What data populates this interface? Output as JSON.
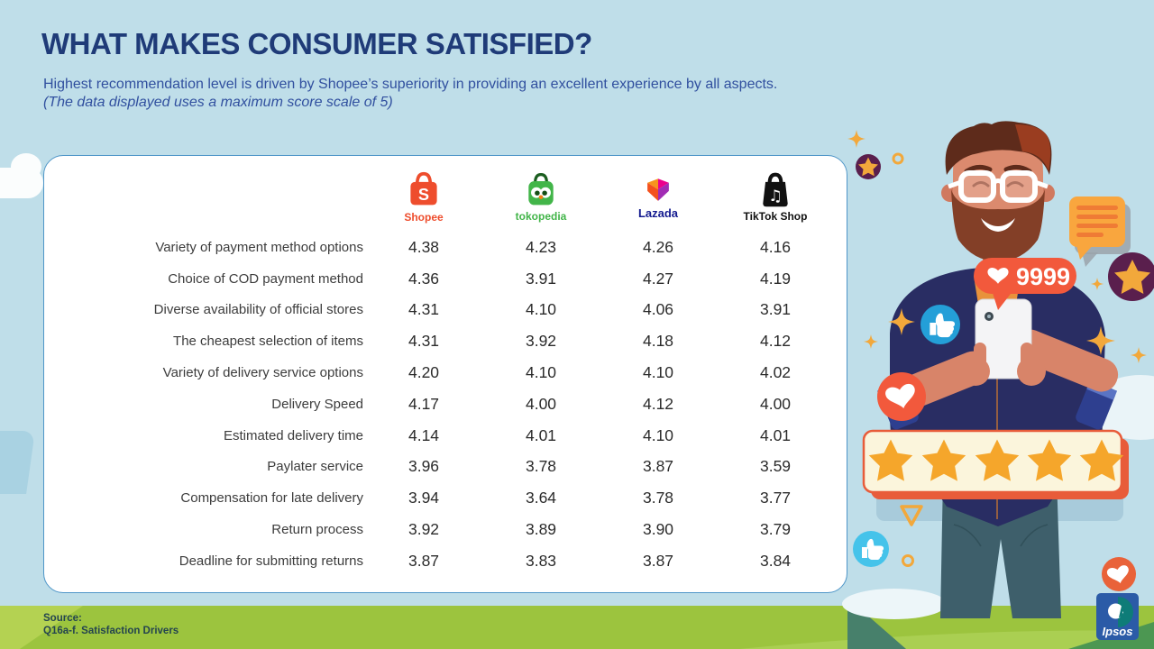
{
  "header": {
    "title": "WHAT MAKES CONSUMER SATISFIED?",
    "subtitle": "Highest recommendation level is driven by Shopee’s superiority in providing an excellent experience by all aspects.",
    "subtitle_note": "(The data displayed uses a maximum score scale of 5)"
  },
  "table": {
    "columns": [
      {
        "name": "Shopee",
        "brand_color": "#EE4D2D"
      },
      {
        "name": "tokopedia",
        "brand_color": "#42B549"
      },
      {
        "name": "Lazada",
        "brand_color": "#131A8F"
      },
      {
        "name": "TikTok Shop",
        "brand_color": "#111111"
      }
    ],
    "rows": [
      {
        "label": "Variety of payment method options",
        "values": [
          "4.38",
          "4.23",
          "4.26",
          "4.16"
        ]
      },
      {
        "label": "Choice of COD payment method",
        "values": [
          "4.36",
          "3.91",
          "4.27",
          "4.19"
        ]
      },
      {
        "label": "Diverse availability of official stores",
        "values": [
          "4.31",
          "4.10",
          "4.06",
          "3.91"
        ]
      },
      {
        "label": "The cheapest selection of items",
        "values": [
          "4.31",
          "3.92",
          "4.18",
          "4.12"
        ]
      },
      {
        "label": "Variety of delivery service options",
        "values": [
          "4.20",
          "4.10",
          "4.10",
          "4.02"
        ]
      },
      {
        "label": "Delivery Speed",
        "values": [
          "4.17",
          "4.00",
          "4.12",
          "4.00"
        ]
      },
      {
        "label": "Estimated delivery time",
        "values": [
          "4.14",
          "4.01",
          "4.10",
          "4.01"
        ]
      },
      {
        "label": "Paylater service",
        "values": [
          "3.96",
          "3.78",
          "3.87",
          "3.59"
        ]
      },
      {
        "label": "Compensation for late delivery",
        "values": [
          "3.94",
          "3.64",
          "3.78",
          "3.77"
        ]
      },
      {
        "label": "Return process",
        "values": [
          "3.92",
          "3.89",
          "3.90",
          "3.79"
        ]
      },
      {
        "label": "Deadline for submitting returns",
        "values": [
          "3.87",
          "3.83",
          "3.87",
          "3.84"
        ]
      }
    ]
  },
  "footer": {
    "source_label": "Source:",
    "source_detail": "Q16a-f. Satisfaction Drivers"
  },
  "illustration": {
    "likes_count": "9999",
    "rating_stars": 5,
    "logo": "Ipsos"
  },
  "colors": {
    "background": "#BFDEE9",
    "card_border": "#4F96C8",
    "title": "#1F3B78",
    "subtitle": "#31509F",
    "grass": "#9CC43E",
    "grass_light": "#B4D252",
    "banner_fill": "#FBF5DC",
    "banner_border": "#E85C3A",
    "star_orange": "#F5A62B",
    "badge_orange": "#F2593C",
    "plum": "#5A1F4D",
    "like_blue": "#249FD8",
    "ipsos_blue": "#2B5BA7",
    "ipsos_teal": "#0E7C78"
  },
  "chart_data": {
    "type": "table",
    "title": "WHAT MAKES CONSUMER SATISFIED?",
    "note": "Scores on a maximum scale of 5 (Q16a-f. Satisfaction Drivers)",
    "categories": [
      "Variety of payment method options",
      "Choice of COD payment method",
      "Diverse availability of official stores",
      "The cheapest selection of items",
      "Variety of delivery service options",
      "Delivery Speed",
      "Estimated delivery time",
      "Paylater service",
      "Compensation for late delivery",
      "Return process",
      "Deadline for submitting returns"
    ],
    "series": [
      {
        "name": "Shopee",
        "values": [
          4.38,
          4.36,
          4.31,
          4.31,
          4.2,
          4.17,
          4.14,
          3.96,
          3.94,
          3.92,
          3.87
        ]
      },
      {
        "name": "Tokopedia",
        "values": [
          4.23,
          3.91,
          4.1,
          3.92,
          4.1,
          4.0,
          4.01,
          3.78,
          3.64,
          3.89,
          3.83
        ]
      },
      {
        "name": "Lazada",
        "values": [
          4.26,
          4.27,
          4.06,
          4.18,
          4.1,
          4.12,
          4.1,
          3.87,
          3.78,
          3.9,
          3.87
        ]
      },
      {
        "name": "TikTok Shop",
        "values": [
          4.16,
          4.19,
          3.91,
          4.12,
          4.02,
          4.0,
          4.01,
          3.59,
          3.77,
          3.79,
          3.84
        ]
      }
    ],
    "value_range": [
      0,
      5
    ]
  }
}
